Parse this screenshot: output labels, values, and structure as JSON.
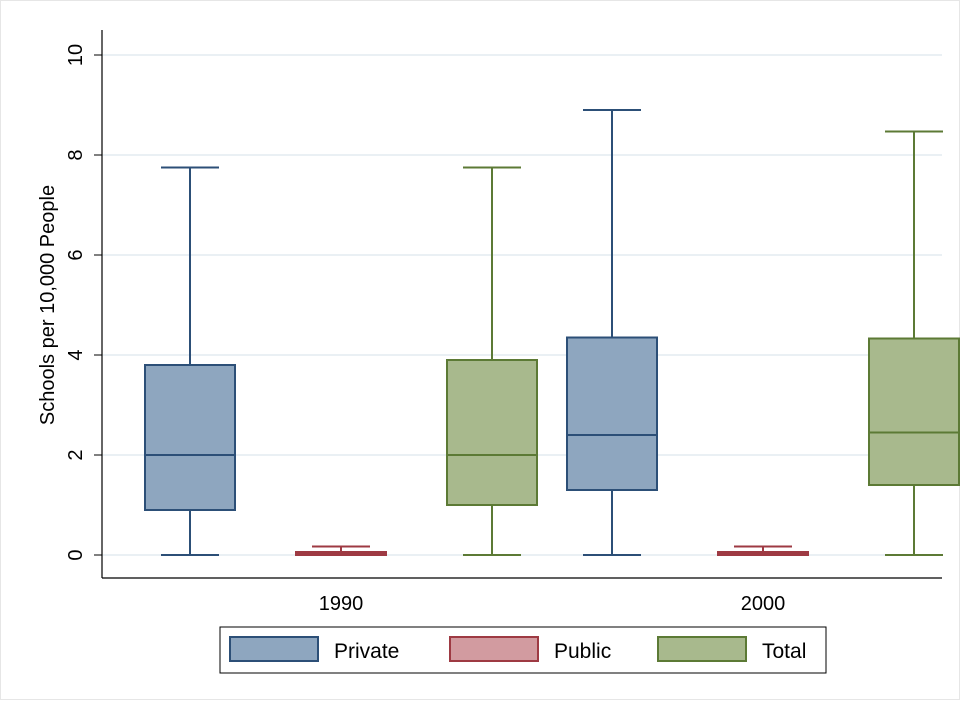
{
  "chart_data": {
    "type": "box",
    "ylabel": "Schools per 10,000 People",
    "ylim": [
      0,
      10
    ],
    "yticks": [
      0,
      2,
      4,
      6,
      8,
      10
    ],
    "grid": true,
    "legend_position": "bottom",
    "categories": [
      "1990",
      "2000"
    ],
    "series": [
      {
        "name": "Private",
        "color": "#8ea6bf",
        "stroke": "#2c4f77",
        "boxes": [
          {
            "min": 0,
            "q1": 0.9,
            "median": 2.0,
            "q3": 3.8,
            "max": 7.75
          },
          {
            "min": 0,
            "q1": 1.3,
            "median": 2.4,
            "q3": 4.35,
            "max": 8.9
          }
        ]
      },
      {
        "name": "Public",
        "color": "#d29ba0",
        "stroke": "#9e3a43",
        "boxes": [
          {
            "min": 0,
            "q1": 0.0,
            "median": 0.03,
            "q3": 0.06,
            "max": 0.17
          },
          {
            "min": 0,
            "q1": 0.0,
            "median": 0.03,
            "q3": 0.06,
            "max": 0.17
          }
        ]
      },
      {
        "name": "Total",
        "color": "#a8b98d",
        "stroke": "#5c7a35",
        "boxes": [
          {
            "min": 0,
            "q1": 1.0,
            "median": 2.0,
            "q3": 3.9,
            "max": 7.75
          },
          {
            "min": 0,
            "q1": 1.4,
            "median": 2.45,
            "q3": 4.33,
            "max": 8.47
          }
        ]
      }
    ]
  }
}
